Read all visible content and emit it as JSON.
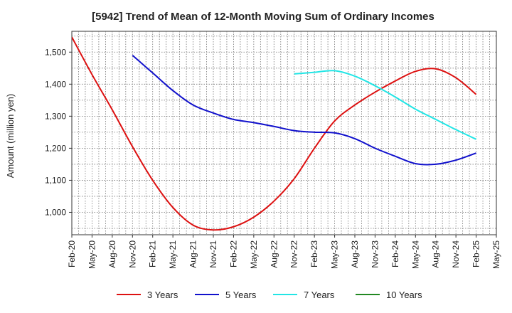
{
  "chart_data": {
    "type": "line",
    "title": "[5942]  Trend of Mean of 12-Month Moving Sum of Ordinary Incomes",
    "xlabel": "",
    "ylabel": "Amount (million yen)",
    "ylim": [
      930,
      1565
    ],
    "y_ticks": [
      1000,
      1100,
      1200,
      1300,
      1400,
      1500
    ],
    "y_tick_labels": [
      "1,000",
      "1,100",
      "1,200",
      "1,300",
      "1,400",
      "1,500"
    ],
    "categories": [
      "Feb-20",
      "May-20",
      "Aug-20",
      "Nov-20",
      "Feb-21",
      "May-21",
      "Aug-21",
      "Nov-21",
      "Feb-22",
      "May-22",
      "Aug-22",
      "Nov-22",
      "Feb-23",
      "May-23",
      "Aug-23",
      "Nov-23",
      "Feb-24",
      "May-24",
      "Aug-24",
      "Nov-24",
      "Feb-25",
      "May-25"
    ],
    "grid": true,
    "legend_position": "bottom",
    "series": [
      {
        "name": "3 Years",
        "color": "#dd1111",
        "values": [
          1547,
          1430,
          1320,
          1205,
          1100,
          1015,
          960,
          945,
          955,
          985,
          1035,
          1105,
          1200,
          1285,
          1335,
          1375,
          1410,
          1440,
          1448,
          1420,
          1368,
          null
        ]
      },
      {
        "name": "5 Years",
        "color": "#1111cc",
        "values": [
          null,
          null,
          null,
          1490,
          1435,
          1380,
          1335,
          1310,
          1290,
          1280,
          1268,
          1255,
          1250,
          1248,
          1230,
          1200,
          1175,
          1152,
          1150,
          1163,
          1185,
          null
        ]
      },
      {
        "name": "7 Years",
        "color": "#22e5e5",
        "values": [
          null,
          null,
          null,
          null,
          null,
          null,
          null,
          null,
          null,
          null,
          null,
          1432,
          1437,
          1442,
          1425,
          1395,
          1360,
          1322,
          1290,
          1258,
          1228,
          null
        ]
      },
      {
        "name": "10 Years",
        "color": "#228822",
        "values": [
          null,
          null,
          null,
          null,
          null,
          null,
          null,
          null,
          null,
          null,
          null,
          null,
          null,
          null,
          null,
          null,
          null,
          null,
          null,
          null,
          null,
          null
        ]
      }
    ]
  }
}
